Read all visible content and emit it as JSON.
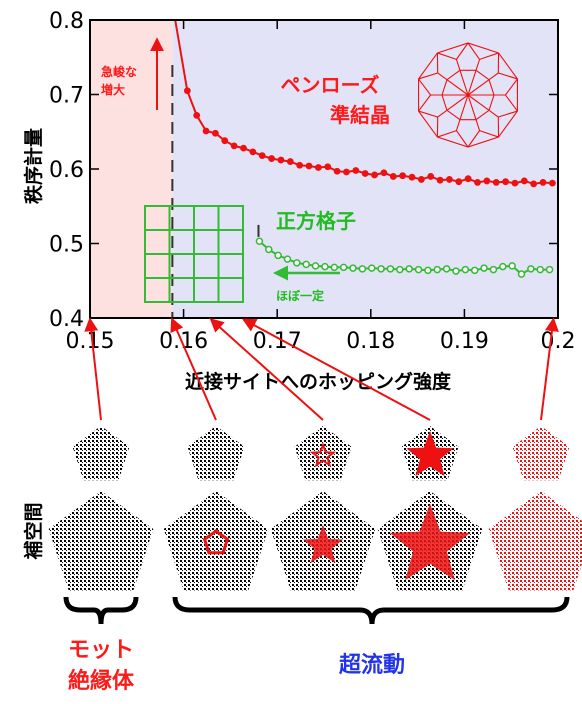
{
  "chart_data": {
    "type": "line",
    "xlabel": "近接サイトへのホッピング強度",
    "ylabel": "秩序計量",
    "xlim": [
      0.15,
      0.2
    ],
    "ylim": [
      0.4,
      0.8
    ],
    "xticks": [
      "0.15",
      "0.16",
      "0.17",
      "0.18",
      "0.19",
      "0.2"
    ],
    "yticks": [
      "0.4",
      "0.5",
      "0.6",
      "0.7",
      "0.8"
    ],
    "regions": [
      {
        "name": "モット絶縁体",
        "x": [
          0.15,
          0.1588
        ],
        "color": "#fde0e0"
      },
      {
        "name": "超流動",
        "x": [
          0.1588,
          0.2
        ],
        "color": "#e2e3f7"
      }
    ],
    "transitions": [
      0.1588,
      0.168
    ],
    "series": [
      {
        "name": "ペンローズ準結晶",
        "color": "#ee1111",
        "marker": "filled-circle",
        "x": [
          0.1591,
          0.1604,
          0.1614,
          0.1624,
          0.1634,
          0.1644,
          0.1654,
          0.1664,
          0.1674,
          0.1684,
          0.1694,
          0.1704,
          0.1714,
          0.1724,
          0.1734,
          0.1744,
          0.1754,
          0.1764,
          0.1774,
          0.1784,
          0.1794,
          0.1804,
          0.1814,
          0.1824,
          0.1834,
          0.1844,
          0.1854,
          0.1864,
          0.1874,
          0.1884,
          0.1894,
          0.1904,
          0.1914,
          0.1924,
          0.1934,
          0.1944,
          0.1954,
          0.1964,
          0.1974,
          0.1984,
          0.1994
        ],
        "y": [
          0.8,
          0.705,
          0.672,
          0.651,
          0.648,
          0.638,
          0.631,
          0.628,
          0.623,
          0.618,
          0.614,
          0.612,
          0.61,
          0.605,
          0.604,
          0.602,
          0.603,
          0.597,
          0.596,
          0.598,
          0.594,
          0.592,
          0.595,
          0.59,
          0.591,
          0.589,
          0.586,
          0.59,
          0.585,
          0.586,
          0.583,
          0.587,
          0.582,
          0.584,
          0.582,
          0.583,
          0.581,
          0.584,
          0.58,
          0.582,
          0.581
        ]
      },
      {
        "name": "正方格子",
        "color": "#33bb33",
        "marker": "open-circle",
        "x": [
          0.1681,
          0.1691,
          0.1701,
          0.1711,
          0.1721,
          0.1731,
          0.1741,
          0.1751,
          0.1761,
          0.1771,
          0.1781,
          0.1791,
          0.1801,
          0.1811,
          0.1821,
          0.1831,
          0.1841,
          0.1851,
          0.1861,
          0.1871,
          0.1881,
          0.1891,
          0.1901,
          0.1911,
          0.1921,
          0.1931,
          0.1941,
          0.1951,
          0.1961,
          0.1971,
          0.1981,
          0.1991
        ],
        "y": [
          0.503,
          0.492,
          0.484,
          0.479,
          0.474,
          0.472,
          0.47,
          0.469,
          0.468,
          0.468,
          0.467,
          0.466,
          0.467,
          0.466,
          0.466,
          0.465,
          0.466,
          0.465,
          0.464,
          0.465,
          0.466,
          0.463,
          0.465,
          0.464,
          0.467,
          0.465,
          0.469,
          0.47,
          0.459,
          0.466,
          0.465,
          0.465
        ]
      }
    ],
    "annotations": {
      "steep_line1": "急峻な",
      "steep_line2": "増大",
      "penrose_line1": "ペンローズ",
      "penrose_line2": "準結晶",
      "square_label": "正方格子",
      "flat_label": "ほぼ一定"
    }
  },
  "lower_panel": {
    "side_label": "補空間",
    "mott_line1": "モット",
    "mott_line2": "絶縁体",
    "superfluid": "超流動",
    "snapshots": [
      {
        "x": 0.15,
        "star_fraction": 0
      },
      {
        "x": 0.1588,
        "star_fraction": 0.12
      },
      {
        "x": 0.163,
        "star_fraction": 0.35
      },
      {
        "x": 0.1665,
        "star_fraction": 0.7
      },
      {
        "x": 0.1995,
        "star_fraction": 1
      }
    ]
  },
  "colors": {
    "red": "#ee1111",
    "green": "#33bb33",
    "blue": "#2233ee",
    "mott_bg": "#fde0e0",
    "sf_bg": "#e2e3f7"
  }
}
